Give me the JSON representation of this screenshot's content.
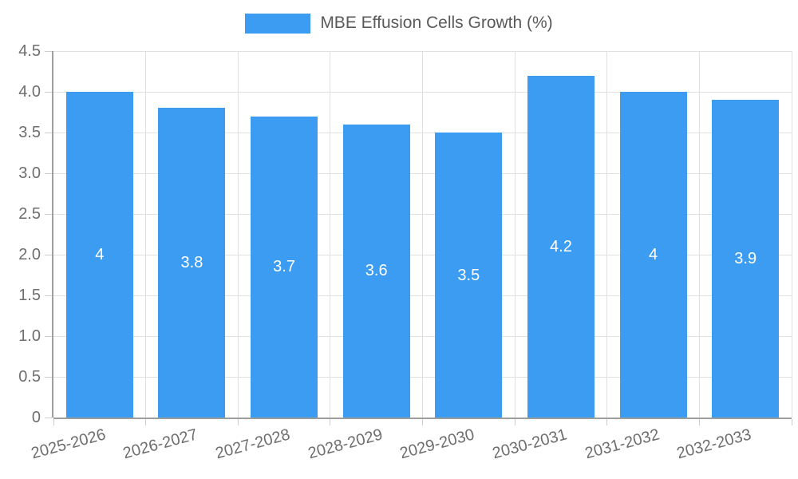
{
  "legend": {
    "label": "MBE Effusion Cells Growth (%)",
    "swatch_color": "#3B9CF2"
  },
  "chart_data": {
    "type": "bar",
    "title": "MBE Effusion Cells Growth (%)",
    "categories": [
      "2025-2026",
      "2026-2027",
      "2027-2028",
      "2028-2029",
      "2029-2030",
      "2030-2031",
      "2031-2032",
      "2032-2033"
    ],
    "series": [
      {
        "name": "MBE Effusion Cells Growth (%)",
        "values": [
          4,
          3.8,
          3.7,
          3.6,
          3.5,
          4.2,
          4,
          3.9
        ]
      }
    ],
    "value_labels": [
      "4",
      "3.8",
      "3.7",
      "3.6",
      "3.5",
      "4.2",
      "4",
      "3.9"
    ],
    "xlabel": "",
    "ylabel": "",
    "y_ticks": [
      "0",
      "0.5",
      "1.0",
      "1.5",
      "2.0",
      "2.5",
      "3.0",
      "3.5",
      "4.0",
      "4.5"
    ],
    "ylim": [
      0,
      4.5
    ],
    "grid": "on",
    "legend_position": "top-center",
    "colors": {
      "bar": "#3B9CF2",
      "bar_label": "#FFFFFF",
      "grid": "#E0E0E0",
      "axis": "#9E9E9E",
      "tick_mark": "#CCCCCC",
      "tick_label": "#6E6E6E",
      "legend_text": "#5A5A5A",
      "background": "#FFFFFF"
    }
  }
}
